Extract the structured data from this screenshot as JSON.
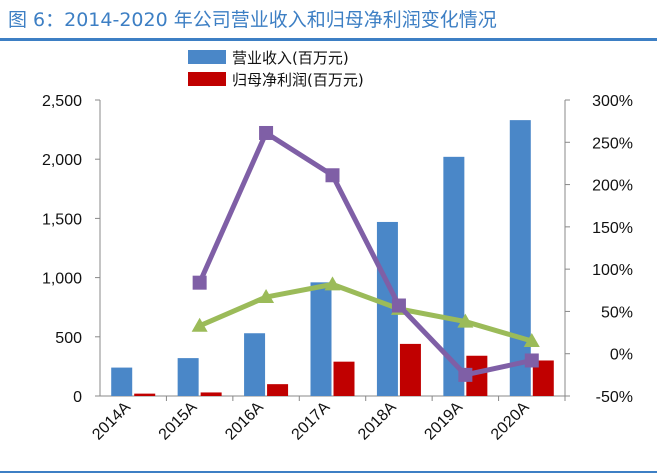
{
  "title": "图 6：2014-2020 年公司营业收入和归母净利润变化情况",
  "colors": {
    "title": "#3d7fc4",
    "revenue": "#4a87c8",
    "profit": "#c00000",
    "growth_revenue": "#9bbb59",
    "growth_profit": "#7f5fa6"
  },
  "chart_data": {
    "type": "bar",
    "categories": [
      "2014A",
      "2015A",
      "2016A",
      "2017A",
      "2018A",
      "2019A",
      "2020A"
    ],
    "y_left": {
      "ylim": [
        0,
        2500
      ],
      "ticks": [
        "0",
        "500",
        "1,000",
        "1,500",
        "2,000",
        "2,500"
      ]
    },
    "y_right": {
      "ylim": [
        -50,
        300
      ],
      "ticks": [
        "-50%",
        "0%",
        "50%",
        "100%",
        "150%",
        "200%",
        "250%",
        "300%"
      ]
    },
    "series": [
      {
        "name": "营业收入(百万元)",
        "kind": "bar",
        "axis": "left",
        "values": [
          240,
          320,
          530,
          960,
          1470,
          2020,
          2330
        ]
      },
      {
        "name": "归母净利润(百万元)",
        "kind": "bar",
        "axis": "left",
        "values": [
          20,
          30,
          100,
          290,
          440,
          340,
          300
        ]
      },
      {
        "kind": "line",
        "axis": "right",
        "values": [
          null,
          33,
          67,
          82,
          53,
          38,
          15
        ]
      },
      {
        "kind": "line",
        "axis": "right",
        "values": [
          null,
          84,
          261,
          211,
          57,
          -25,
          -8
        ]
      }
    ],
    "legend": "top-center",
    "grid": false
  }
}
